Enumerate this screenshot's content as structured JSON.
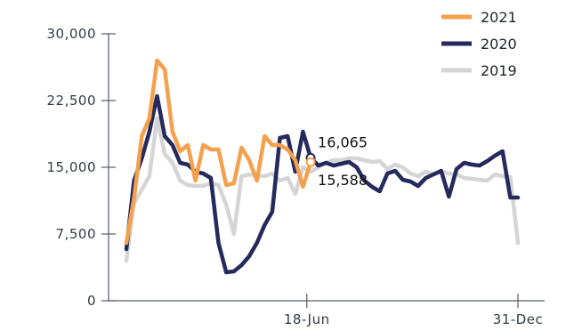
{
  "chart_data": {
    "type": "line",
    "y_ticks": [
      {
        "value": 0,
        "label": "0"
      },
      {
        "value": 7500,
        "label": "7,500"
      },
      {
        "value": 15000,
        "label": "15,000"
      },
      {
        "value": 22500,
        "label": "22,500"
      },
      {
        "value": 30000,
        "label": "30,000"
      }
    ],
    "x_ticks": [
      {
        "week": 24.5,
        "label": "18-Jun"
      },
      {
        "week": 52,
        "label": "31-Dec"
      }
    ],
    "ylim": [
      0,
      30000
    ],
    "xlim": [
      1,
      52
    ],
    "grid": false,
    "legend_position": "top-right",
    "series": [
      {
        "name": "2021",
        "color": "#f5a04c",
        "x": [
          1,
          2,
          3,
          4,
          5,
          6,
          7,
          8,
          9,
          10,
          11,
          12,
          13,
          14,
          15,
          16,
          17,
          18,
          19,
          20,
          21,
          22,
          23,
          24,
          25
        ],
        "values": [
          6500,
          11500,
          18500,
          20500,
          27000,
          26000,
          19000,
          16800,
          17500,
          13500,
          17500,
          17000,
          17000,
          13000,
          13200,
          17200,
          15800,
          13500,
          18500,
          17500,
          17500,
          17000,
          15800,
          12800,
          15588
        ]
      },
      {
        "name": "2020",
        "color": "#242a5c",
        "x": [
          1,
          2,
          3,
          4,
          5,
          6,
          7,
          8,
          9,
          10,
          11,
          12,
          13,
          14,
          15,
          16,
          17,
          18,
          19,
          20,
          21,
          22,
          23,
          24,
          25,
          26,
          27,
          28,
          29,
          30,
          31,
          32,
          33,
          34,
          35,
          36,
          37,
          38,
          39,
          40,
          41,
          42,
          43,
          44,
          45,
          46,
          47,
          48,
          49,
          50,
          51,
          52
        ],
        "values": [
          5800,
          13500,
          16000,
          19000,
          23000,
          18500,
          17500,
          15500,
          15300,
          14500,
          14300,
          13800,
          6500,
          3200,
          3300,
          4000,
          5000,
          6500,
          8500,
          10000,
          18300,
          18500,
          14500,
          19000,
          16065,
          15200,
          15500,
          15200,
          15400,
          15600,
          15000,
          13500,
          12800,
          12300,
          14300,
          14600,
          13600,
          13400,
          12900,
          13800,
          14200,
          14600,
          11700,
          14800,
          15500,
          15300,
          15200,
          15700,
          16300,
          16800,
          11600,
          11600
        ]
      },
      {
        "name": "2019",
        "color": "#d5d5d5",
        "x": [
          1,
          2,
          3,
          4,
          5,
          6,
          7,
          8,
          9,
          10,
          11,
          12,
          13,
          14,
          15,
          16,
          17,
          18,
          19,
          20,
          21,
          22,
          23,
          24,
          25,
          26,
          27,
          28,
          29,
          30,
          31,
          32,
          33,
          34,
          35,
          36,
          37,
          38,
          39,
          40,
          41,
          42,
          43,
          44,
          45,
          46,
          47,
          48,
          49,
          50,
          51,
          52
        ],
        "values": [
          4500,
          11000,
          12500,
          14000,
          20500,
          16500,
          15500,
          13500,
          13000,
          12900,
          12900,
          13200,
          13000,
          10800,
          7500,
          14000,
          14200,
          14100,
          14000,
          14300,
          13500,
          13800,
          12000,
          15000,
          14500,
          15000,
          15500,
          15800,
          15800,
          16000,
          16000,
          15800,
          15600,
          15700,
          14800,
          15300,
          15000,
          14300,
          14000,
          14500,
          14200,
          14500,
          14300,
          14200,
          13800,
          13700,
          13600,
          13500,
          14200,
          14000,
          13900,
          6500
        ]
      }
    ],
    "annotations": [
      {
        "series": "2020",
        "x": 25,
        "value": 16065,
        "label": "16,065"
      },
      {
        "series": "2021",
        "x": 25,
        "value": 15588,
        "label": "15,588"
      }
    ]
  }
}
